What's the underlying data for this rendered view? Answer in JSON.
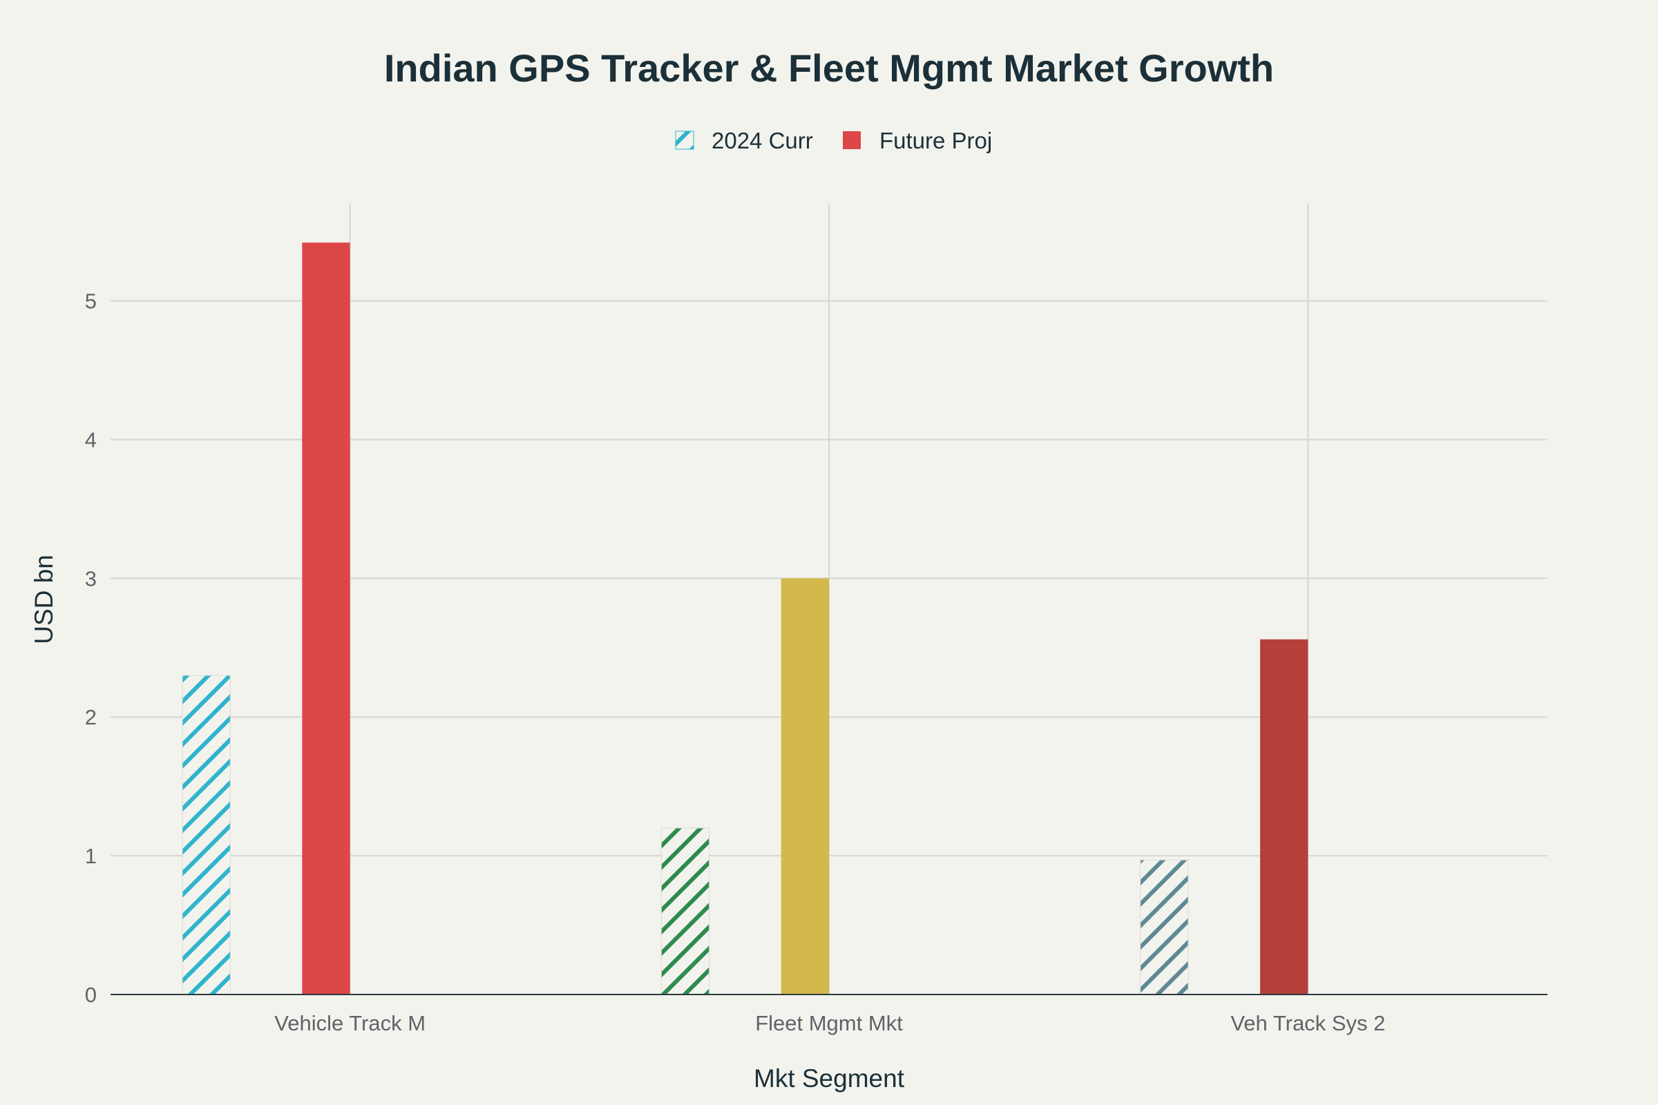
{
  "chart_data": {
    "type": "bar",
    "title": "Indian GPS Tracker & Fleet Mgmt Market Growth",
    "xlabel": "Mkt Segment",
    "ylabel": "USD bn",
    "categories": [
      "Vehicle Track M",
      "Fleet Mgmt Mkt",
      "Veh Track Sys 2"
    ],
    "yticks": [
      "0",
      "1",
      "2",
      "3",
      "4",
      "5"
    ],
    "ylim": [
      0,
      5.7
    ],
    "grid": true,
    "legend_position": "top-center",
    "series": [
      {
        "name": "2024 Curr",
        "pattern": "diagonal-hatch",
        "values": [
          2.3,
          1.2,
          0.97
        ],
        "colors": [
          "#2fb4cc",
          "#2e8b4e",
          "#5f8a94"
        ]
      },
      {
        "name": "Future Proj",
        "pattern": "solid",
        "values": [
          5.42,
          3.0,
          2.56
        ],
        "colors": [
          "#dd4747",
          "#d3b84b",
          "#b5403b"
        ]
      }
    ]
  }
}
